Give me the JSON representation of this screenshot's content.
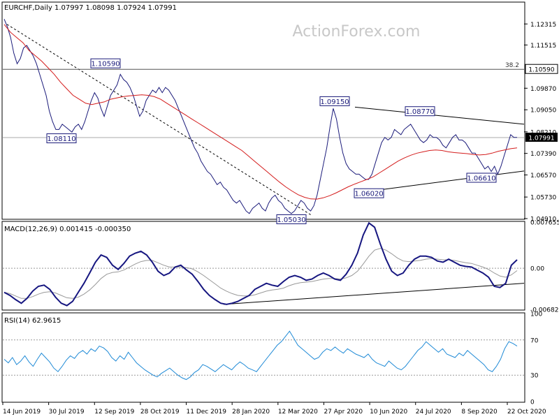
{
  "header": {
    "symbol_line": "EURCHF,Daily  1.07997 1.08098 1.07924 1.07991"
  },
  "watermark": "ActionForex.com",
  "chart_data": [
    {
      "type": "line",
      "panel": "price",
      "description_series": [
        "close",
        "moving_average"
      ],
      "ylim": [
        1.0491,
        1.1312
      ],
      "y_ticks": [
        "1.12315",
        "1.11515",
        "1.10590",
        "1.09870",
        "1.09050",
        "1.08210",
        "1.07991",
        "1.07390",
        "1.06570",
        "1.05730",
        "1.04910"
      ],
      "x_ticks": [
        "14 Jun 2019",
        "30 Jul 2019",
        "12 Sep 2019",
        "28 Oct 2019",
        "11 Dec 2019",
        "28 Jan 2020",
        "12 Mar 2020",
        "27 Apr 2020",
        "10 Jun 2020",
        "24 Jul 2020",
        "8 Sep 2020",
        "22 Oct 2020"
      ],
      "annotations": [
        {
          "label": "1.10590",
          "value": 1.1059
        },
        {
          "label": "1.08110",
          "value": 1.0811
        },
        {
          "label": "1.05030",
          "value": 1.0503
        },
        {
          "label": "1.09150",
          "value": 1.0915
        },
        {
          "label": "1.06020",
          "value": 1.0602
        },
        {
          "label": "1.08770",
          "value": 1.0877
        },
        {
          "label": "1.06610",
          "value": 1.0661
        }
      ],
      "fib_label": "38.2",
      "fib_level": 1.1059,
      "current_price_label": "1.07991",
      "current_price": 1.07991,
      "close": [
        1.125,
        1.122,
        1.118,
        1.112,
        1.108,
        1.11,
        1.114,
        1.115,
        1.113,
        1.111,
        1.108,
        1.104,
        1.1,
        1.096,
        1.09,
        1.086,
        1.083,
        1.083,
        1.085,
        1.084,
        1.083,
        1.082,
        1.084,
        1.085,
        1.083,
        1.086,
        1.09,
        1.094,
        1.097,
        1.095,
        1.091,
        1.088,
        1.092,
        1.096,
        1.098,
        1.1,
        1.104,
        1.102,
        1.101,
        1.099,
        1.096,
        1.092,
        1.088,
        1.09,
        1.094,
        1.096,
        1.098,
        1.097,
        1.099,
        1.097,
        1.099,
        1.098,
        1.096,
        1.094,
        1.091,
        1.088,
        1.085,
        1.082,
        1.079,
        1.076,
        1.074,
        1.071,
        1.069,
        1.067,
        1.066,
        1.064,
        1.062,
        1.063,
        1.061,
        1.06,
        1.058,
        1.056,
        1.055,
        1.056,
        1.054,
        1.052,
        1.051,
        1.053,
        1.054,
        1.055,
        1.053,
        1.052,
        1.055,
        1.057,
        1.058,
        1.056,
        1.055,
        1.053,
        1.052,
        1.051,
        1.052,
        1.054,
        1.056,
        1.055,
        1.053,
        1.052,
        1.054,
        1.058,
        1.064,
        1.07,
        1.076,
        1.084,
        1.091,
        1.087,
        1.08,
        1.074,
        1.07,
        1.068,
        1.067,
        1.066,
        1.066,
        1.065,
        1.064,
        1.064,
        1.066,
        1.07,
        1.074,
        1.078,
        1.08,
        1.079,
        1.08,
        1.083,
        1.082,
        1.081,
        1.083,
        1.084,
        1.085,
        1.083,
        1.081,
        1.079,
        1.078,
        1.079,
        1.081,
        1.08,
        1.08,
        1.079,
        1.077,
        1.076,
        1.078,
        1.08,
        1.081,
        1.079,
        1.079,
        1.078,
        1.076,
        1.074,
        1.074,
        1.072,
        1.07,
        1.068,
        1.069,
        1.067,
        1.069,
        1.066,
        1.069,
        1.073,
        1.077,
        1.081,
        1.08,
        1.08
      ],
      "moving_average": [
        1.123,
        1.12,
        1.118,
        1.116,
        1.113,
        1.111,
        1.109,
        1.1065,
        1.104,
        1.101,
        1.0985,
        1.096,
        1.0945,
        1.093,
        1.0925,
        1.093,
        1.0935,
        1.0945,
        1.095,
        1.0955,
        1.0958,
        1.096,
        1.0962,
        1.096,
        1.0955,
        1.0945,
        1.093,
        1.0915,
        1.09,
        1.0885,
        1.087,
        1.0855,
        1.084,
        1.0825,
        1.081,
        1.0795,
        1.078,
        1.0765,
        1.075,
        1.073,
        1.071,
        1.069,
        1.067,
        1.065,
        1.063,
        1.0612,
        1.0596,
        1.0582,
        1.0572,
        1.0566,
        1.0565,
        1.057,
        1.0578,
        1.0588,
        1.06,
        1.0612,
        1.0622,
        1.0631,
        1.064,
        1.065,
        1.0665,
        1.068,
        1.0695,
        1.071,
        1.0722,
        1.0732,
        1.074,
        1.0745,
        1.075,
        1.0752,
        1.075,
        1.0745,
        1.0742,
        1.074,
        1.0738,
        1.0735,
        1.0733,
        1.0735,
        1.074,
        1.0747,
        1.0752,
        1.0757,
        1.076
      ]
    },
    {
      "type": "line",
      "panel": "macd",
      "title": "MACD(12,26,9) 0.001415 -0.000350",
      "ylim": [
        -0.006822,
        0.007655
      ],
      "y_ticks": [
        "0.007655",
        "0.00",
        "-0.006822"
      ],
      "macd": [
        -0.004,
        -0.0045,
        -0.0052,
        -0.0058,
        -0.005,
        -0.0038,
        -0.003,
        -0.0028,
        -0.0035,
        -0.0048,
        -0.0058,
        -0.0062,
        -0.0055,
        -0.004,
        -0.0025,
        -0.0008,
        0.001,
        0.0022,
        0.0018,
        0.0005,
        -0.0002,
        0.0008,
        0.002,
        0.0025,
        0.0028,
        0.0022,
        0.001,
        -0.0005,
        -0.0012,
        -0.0008,
        0.0002,
        0.0005,
        -0.0003,
        -0.001,
        -0.0022,
        -0.0035,
        -0.0045,
        -0.0052,
        -0.0058,
        -0.006,
        -0.0058,
        -0.0055,
        -0.005,
        -0.0045,
        -0.0035,
        -0.003,
        -0.0025,
        -0.0028,
        -0.003,
        -0.0022,
        -0.0015,
        -0.0012,
        -0.0015,
        -0.002,
        -0.0018,
        -0.0012,
        -0.0008,
        -0.0012,
        -0.0018,
        -0.002,
        -0.001,
        0.0005,
        0.0025,
        0.0055,
        0.0075,
        0.0068,
        0.004,
        0.0015,
        -0.0005,
        -0.0012,
        -0.0008,
        0.0005,
        0.0015,
        0.002,
        0.002,
        0.0018,
        0.0012,
        0.001,
        0.0015,
        0.001,
        0.0005,
        0.0003,
        0.0002,
        -0.0003,
        -0.0008,
        -0.0015,
        -0.003,
        -0.0032,
        -0.0025,
        0.0005,
        0.0014
      ],
      "signal": [
        -0.004,
        -0.0042,
        -0.0046,
        -0.005,
        -0.005,
        -0.0047,
        -0.0043,
        -0.004,
        -0.0039,
        -0.0041,
        -0.0045,
        -0.0049,
        -0.005,
        -0.0048,
        -0.0043,
        -0.0036,
        -0.0027,
        -0.0017,
        -0.001,
        -0.0007,
        -0.0006,
        -0.0003,
        0.0002,
        0.0007,
        0.0011,
        0.0013,
        0.0013,
        0.0009,
        0.0005,
        0.0002,
        0.0002,
        0.0002,
        0.0001,
        -0.0001,
        -0.0006,
        -0.0012,
        -0.0019,
        -0.0026,
        -0.0033,
        -0.0038,
        -0.0042,
        -0.0045,
        -0.0046,
        -0.0046,
        -0.0044,
        -0.0041,
        -0.0038,
        -0.0036,
        -0.0035,
        -0.0033,
        -0.0029,
        -0.0026,
        -0.0024,
        -0.0023,
        -0.0022,
        -0.002,
        -0.0018,
        -0.0017,
        -0.0017,
        -0.0018,
        -0.0016,
        -0.0012,
        -0.0005,
        0.0007,
        0.002,
        0.003,
        0.0033,
        0.003,
        0.0024,
        0.0017,
        0.0012,
        0.0011,
        0.0012,
        0.0013,
        0.0015,
        0.0016,
        0.0015,
        0.0014,
        0.0014,
        0.0013,
        0.0011,
        0.0009,
        0.0008,
        0.0005,
        0.0002,
        -0.0002,
        -0.0008,
        -0.0013,
        -0.0015,
        -0.0011,
        -0.0004
      ]
    },
    {
      "type": "line",
      "panel": "rsi",
      "title": "RSI(14) 62.9615",
      "ylim": [
        0,
        100
      ],
      "y_ticks": [
        "100",
        "70",
        "30",
        "0"
      ],
      "rsi": [
        48,
        44,
        50,
        42,
        46,
        52,
        45,
        40,
        48,
        55,
        50,
        45,
        38,
        34,
        40,
        47,
        52,
        49,
        55,
        58,
        54,
        60,
        57,
        63,
        61,
        57,
        50,
        46,
        52,
        48,
        56,
        50,
        44,
        40,
        36,
        33,
        30,
        28,
        32,
        35,
        38,
        34,
        30,
        27,
        25,
        28,
        33,
        36,
        42,
        40,
        37,
        34,
        38,
        42,
        39,
        36,
        41,
        45,
        42,
        38,
        36,
        34,
        40,
        46,
        52,
        58,
        64,
        68,
        74,
        80,
        72,
        64,
        60,
        56,
        52,
        48,
        50,
        56,
        60,
        58,
        62,
        58,
        55,
        60,
        57,
        54,
        52,
        50,
        54,
        48,
        44,
        42,
        40,
        46,
        42,
        38,
        36,
        40,
        46,
        52,
        58,
        62,
        68,
        64,
        60,
        56,
        60,
        54,
        52,
        50,
        55,
        52,
        58,
        54,
        50,
        46,
        42,
        36,
        34,
        40,
        48,
        60,
        68,
        66,
        63
      ]
    },
    {
      "type": "line",
      "panel": "x_axis",
      "x_ticks": [
        "14 Jun 2019",
        "30 Jul 2019",
        "12 Sep 2019",
        "28 Oct 2019",
        "11 Dec 2019",
        "28 Jan 2020",
        "12 Mar 2020",
        "27 Apr 2020",
        "10 Jun 2020",
        "24 Jul 2020",
        "8 Sep 2020",
        "22 Oct 2020"
      ]
    }
  ],
  "colors": {
    "price": "#1a1a7a",
    "ma": "#d41c1c",
    "macd": "#161680",
    "signal": "#999999",
    "rsi": "#1f8ad6",
    "label_border": "#1a1a7a",
    "label_text": "#1a1a7a",
    "current_box": "#000000",
    "current_text": "#ffffff",
    "grid_line": "#cfcfcf",
    "fib_line": "#555555"
  }
}
